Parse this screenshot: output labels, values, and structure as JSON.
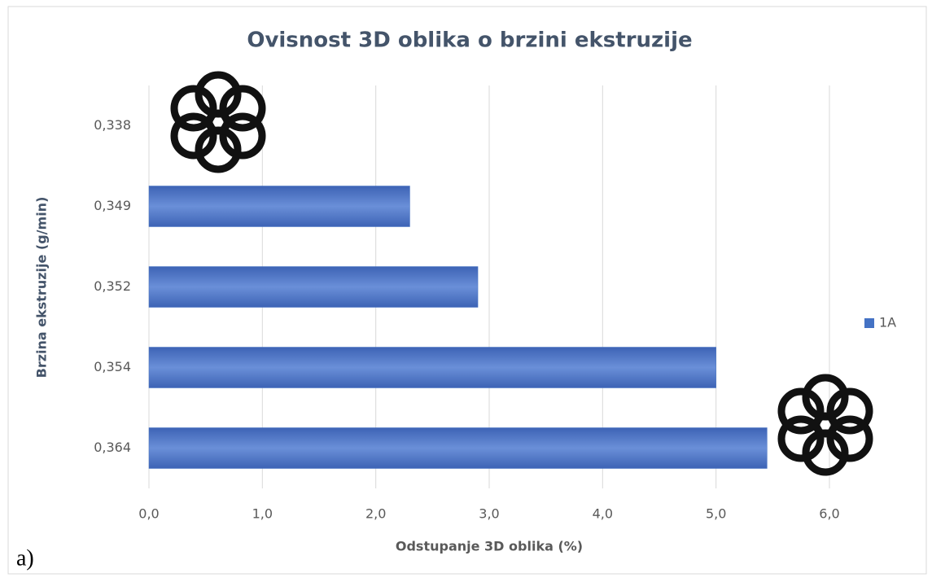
{
  "chart_data": {
    "type": "bar",
    "orientation": "horizontal",
    "title": "Ovisnost 3D oblika o brzini ekstruzije",
    "x_label": "Odstupanje 3D oblika (%)",
    "y_label": "Brzina ekstruzije (g/min)",
    "annotation": "a)",
    "categories": [
      "0,338",
      "0,349",
      "0,352",
      "0,354",
      "0,364"
    ],
    "series": [
      {
        "name": "1A",
        "color": "#4472c4",
        "values": [
          null,
          2.3,
          2.9,
          5.0,
          5.45
        ]
      }
    ],
    "xlim": [
      0,
      6
    ],
    "xticks": [
      {
        "value": 0,
        "label": "0,0"
      },
      {
        "value": 1,
        "label": "1,0"
      },
      {
        "value": 2,
        "label": "2,0"
      },
      {
        "value": 3,
        "label": "3,0"
      },
      {
        "value": 4,
        "label": "4,0"
      },
      {
        "value": 5,
        "label": "5,0"
      },
      {
        "value": 6,
        "label": "6,0"
      }
    ],
    "grid": true,
    "legend": "right"
  }
}
